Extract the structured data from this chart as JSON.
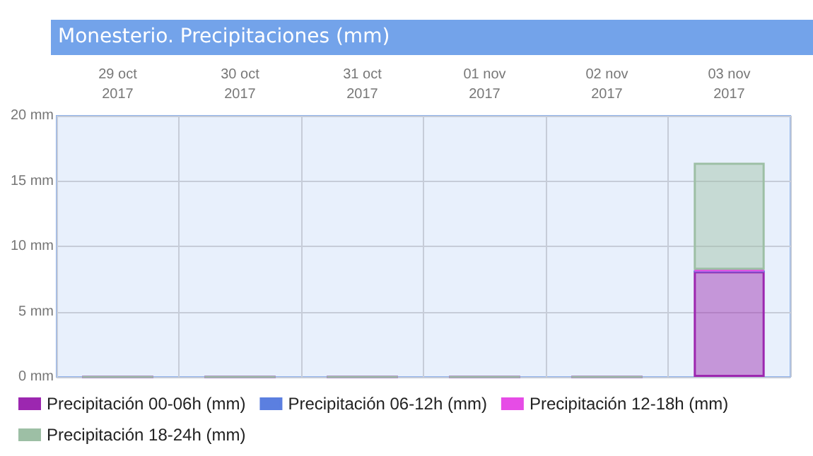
{
  "chart_data": {
    "type": "bar",
    "stacked": true,
    "title": "Monesterio. Precipitaciones (mm)",
    "categories": [
      "29 oct\n2017",
      "30 oct\n2017",
      "31 oct\n2017",
      "01 nov\n2017",
      "02 nov\n2017",
      "03 nov\n2017"
    ],
    "series": [
      {
        "name": "Precipitación 00-06h (mm)",
        "color": "#9c27b0",
        "values": [
          0,
          0,
          0,
          0,
          0,
          8.1
        ]
      },
      {
        "name": "Precipitación 06-12h (mm)",
        "color": "#5b7fe0",
        "values": [
          0,
          0,
          0,
          0,
          0,
          0
        ]
      },
      {
        "name": "Precipitación 12-18h (mm)",
        "color": "#e64ce6",
        "values": [
          0,
          0,
          0,
          0,
          0,
          0.1
        ]
      },
      {
        "name": "Precipitación 18-24h (mm)",
        "color": "#9dbfa5",
        "values": [
          0,
          0,
          0,
          0,
          0,
          8.2
        ]
      }
    ],
    "ylim": [
      0,
      20
    ],
    "yticks": [
      {
        "value": 0,
        "label": "0 mm"
      },
      {
        "value": 5,
        "label": "5 mm"
      },
      {
        "value": 10,
        "label": "10 mm"
      },
      {
        "value": 15,
        "label": "15 mm"
      },
      {
        "value": 20,
        "label": "20 mm"
      }
    ],
    "grid": true,
    "legend": "bottom"
  }
}
